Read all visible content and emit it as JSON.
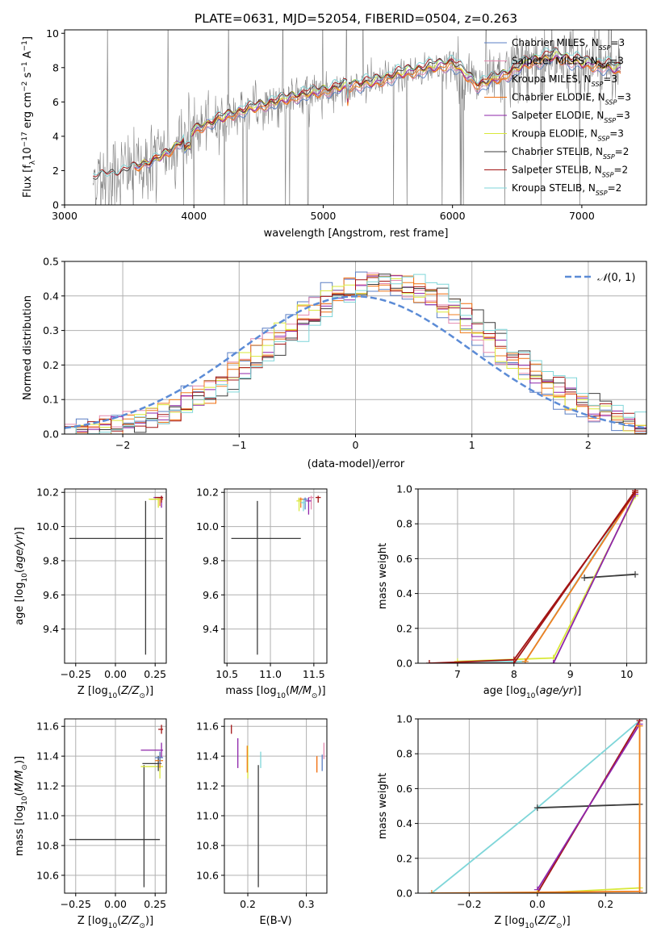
{
  "colors": {
    "Chabrier MILES": "#5b7fc4",
    "Salpeter MILES": "#e58bb0",
    "Kroupa MILES": "#f07f1f",
    "Chabrier ELODIE": "#f06c0c",
    "Salpeter ELODIE": "#8e24aa",
    "Kroupa ELODIE": "#d9e83a",
    "Chabrier STELIB": "#3c3c3c",
    "Salpeter STELIB": "#a31515",
    "Kroupa STELIB": "#7fd6d9",
    "data": "#808080",
    "normal": "#5b8bd6",
    "grid": "#b0b0b0"
  },
  "chart_data": [
    {
      "id": "spectrum",
      "type": "line",
      "title": "PLATE=0631, MJD=52054, FIBERID=0504, z=0.263",
      "xlabel": "wavelength [Angstrom, rest frame]",
      "ylabel_main": "Flux [f",
      "ylabel_rest": "10",
      "ylabel_unit": " erg cm",
      "ylabel_unit2": " s",
      "ylabel_unit3": " A",
      "ylabel_end": "]",
      "xlim": [
        3000,
        7500
      ],
      "ylim": [
        0,
        10.2
      ],
      "xticks": [
        3000,
        4000,
        5000,
        6000,
        7000
      ],
      "yticks": [
        0,
        2,
        4,
        6,
        8,
        10
      ],
      "grid": false,
      "legend_position": "top-right",
      "legend": [
        {
          "name": "Chabrier MILES, N",
          "sub": "SSP",
          "tail": "=3"
        },
        {
          "name": "Salpeter MILES, N",
          "sub": "SSP",
          "tail": "=3"
        },
        {
          "name": "Kroupa MILES, N",
          "sub": "SSP",
          "tail": "=3"
        },
        {
          "name": "Chabrier ELODIE, N",
          "sub": "SSP",
          "tail": "=3"
        },
        {
          "name": "Salpeter ELODIE, N",
          "sub": "SSP",
          "tail": "=3"
        },
        {
          "name": "Kroupa ELODIE, N",
          "sub": "SSP",
          "tail": "=3"
        },
        {
          "name": "Chabrier STELIB, N",
          "sub": "SSP",
          "tail": "=2"
        },
        {
          "name": "Salpeter STELIB, N",
          "sub": "SSP",
          "tail": "=2"
        },
        {
          "name": "Kroupa STELIB, N",
          "sub": "SSP",
          "tail": "=2"
        }
      ],
      "model_continuum": {
        "x": [
          3220,
          3400,
          3600,
          3800,
          4000,
          4200,
          4400,
          4600,
          4800,
          5000,
          5200,
          5400,
          5600,
          5800,
          6000,
          6200,
          6400,
          6600,
          6800,
          7000,
          7200,
          7300
        ],
        "y": [
          1.6,
          1.9,
          2.3,
          3.0,
          4.3,
          5.0,
          5.5,
          5.9,
          6.3,
          6.6,
          6.9,
          7.1,
          7.6,
          7.9,
          8.2,
          6.9,
          7.5,
          8.3,
          8.6,
          8.2,
          8.0,
          7.8
        ]
      }
    },
    {
      "id": "residuals",
      "type": "histogram",
      "xlabel": "(data-model)/error",
      "ylabel": "Normed distribution",
      "xlim": [
        -2.5,
        2.5
      ],
      "ylim": [
        0,
        0.5
      ],
      "xticks": [
        -2,
        -1,
        0,
        1,
        2
      ],
      "yticks": [
        0.0,
        0.1,
        0.2,
        0.3,
        0.4,
        0.5
      ],
      "grid": true,
      "legend": "N(0,1)",
      "normal_curve": {
        "mean": 0,
        "sigma": 1
      }
    },
    {
      "id": "age_vs_Z",
      "type": "errorbar",
      "xlabel": "Z [log",
      "xlabel_sub": "10",
      "xlabel_tail": "(Z/Z",
      "ylabel": "age  [log",
      "ylabel_tail": "(age/yr)]",
      "xlim": [
        -0.32,
        0.32
      ],
      "ylim": [
        9.2,
        10.22
      ],
      "xticks": [
        -0.25,
        0.0,
        0.25
      ],
      "yticks": [
        9.4,
        9.6,
        9.8,
        10.0,
        10.2
      ],
      "points": [
        {
          "model": "Chabrier STELIB",
          "x": 0.19,
          "xerr": [
            0.48,
            0.11
          ],
          "y": 9.93,
          "yerr": [
            0.68,
            0.22
          ]
        },
        {
          "model": "Kroupa MILES",
          "x": 0.28,
          "xerr": [
            0.06,
            0.02
          ],
          "y": 10.16,
          "yerr": [
            0.04,
            0.01
          ]
        },
        {
          "model": "Salpeter ELODIE",
          "x": 0.29,
          "xerr": [
            0.05,
            0.01
          ],
          "y": 10.17,
          "yerr": [
            0.06,
            0.01
          ]
        },
        {
          "model": "Kroupa ELODIE",
          "x": 0.27,
          "xerr": [
            0.06,
            0.02
          ],
          "y": 10.16,
          "yerr": [
            0.05,
            0.01
          ]
        },
        {
          "model": "Salpeter STELIB",
          "x": 0.29,
          "xerr": [
            0.04,
            0.01
          ],
          "y": 10.17,
          "yerr": [
            0.03,
            0.01
          ]
        }
      ]
    },
    {
      "id": "age_vs_mass",
      "type": "errorbar",
      "xlabel": "mass [log",
      "ylabel": "",
      "xlim": [
        10.47,
        11.65
      ],
      "ylim": [
        9.2,
        10.22
      ],
      "xticks": [
        10.5,
        11.0,
        11.5
      ],
      "yticks": [
        9.4,
        9.6,
        9.8,
        10.0,
        10.2
      ],
      "points": [
        {
          "model": "Chabrier STELIB",
          "x": 10.85,
          "xerr": [
            0.3,
            0.5
          ],
          "y": 9.93,
          "yerr": [
            0.68,
            0.22
          ]
        },
        {
          "model": "Chabrier MILES",
          "x": 11.4,
          "xerr": [
            0.03,
            0.03
          ],
          "y": 10.16,
          "yerr": [
            0.06,
            0.01
          ]
        },
        {
          "model": "Salpeter MILES",
          "x": 11.47,
          "xerr": [
            0.03,
            0.03
          ],
          "y": 10.17,
          "yerr": [
            0.07,
            0.01
          ]
        },
        {
          "model": "Kroupa MILES",
          "x": 11.35,
          "xerr": [
            0.03,
            0.03
          ],
          "y": 10.16,
          "yerr": [
            0.05,
            0.01
          ]
        },
        {
          "model": "Salpeter ELODIE",
          "x": 11.44,
          "xerr": [
            0.03,
            0.03
          ],
          "y": 10.15,
          "yerr": [
            0.08,
            0.02
          ]
        },
        {
          "model": "Kroupa ELODIE",
          "x": 11.33,
          "xerr": [
            0.03,
            0.03
          ],
          "y": 10.15,
          "yerr": [
            0.06,
            0.02
          ]
        },
        {
          "model": "Salpeter STELIB",
          "x": 11.55,
          "xerr": [
            0.03,
            0.03
          ],
          "y": 10.17,
          "yerr": [
            0.03,
            0.01
          ]
        },
        {
          "model": "Kroupa STELIB",
          "x": 11.38,
          "xerr": [
            0.03,
            0.03
          ],
          "y": 10.14,
          "yerr": [
            0.05,
            0.02
          ]
        }
      ]
    },
    {
      "id": "weight_vs_age",
      "type": "line",
      "xlabel": "age  [log",
      "ylabel": "mass weight",
      "xlim": [
        6.3,
        10.35
      ],
      "ylim": [
        0,
        1
      ],
      "xticks": [
        7,
        8,
        9,
        10
      ],
      "yticks": [
        0.0,
        0.2,
        0.4,
        0.6,
        0.8,
        1.0
      ],
      "series": [
        {
          "model": "Chabrier STELIB",
          "x": [
            9.25,
            10.15
          ],
          "y": [
            0.49,
            0.51
          ]
        },
        {
          "model": "Kroupa STELIB",
          "x": [
            6.5,
            8.2,
            10.15
          ],
          "y": [
            0.0,
            0.01,
            0.99
          ]
        },
        {
          "model": "Kroupa ELODIE",
          "x": [
            7.0,
            8.7,
            10.15
          ],
          "y": [
            0.01,
            0.03,
            0.96
          ]
        },
        {
          "model": "Salpeter ELODIE",
          "x": [
            8.7,
            10.15
          ],
          "y": [
            0.0,
            0.97
          ]
        },
        {
          "model": "Kroupa MILES",
          "x": [
            8.2,
            10.15
          ],
          "y": [
            0.01,
            0.98
          ]
        },
        {
          "model": "Salpeter STELIB",
          "x": [
            6.5,
            8.0,
            10.15
          ],
          "y": [
            0.0,
            0.0,
            0.99
          ]
        },
        {
          "model": "Salpeter STELIB",
          "x": [
            6.5,
            8.0,
            10.15
          ],
          "y": [
            0.0,
            0.02,
            0.98
          ]
        }
      ]
    },
    {
      "id": "mass_vs_Z",
      "type": "errorbar",
      "xlabel": "Z [log",
      "ylabel": "mass [log",
      "xlim": [
        -0.32,
        0.32
      ],
      "ylim": [
        10.48,
        11.65
      ],
      "xticks": [
        -0.25,
        0.0,
        0.25
      ],
      "yticks": [
        10.6,
        10.8,
        11.0,
        11.2,
        11.4,
        11.6
      ],
      "points": [
        {
          "model": "Chabrier STELIB",
          "x": 0.18,
          "xerr": [
            0.47,
            0.1
          ],
          "y": 10.84,
          "yerr": [
            0.32,
            0.5
          ]
        },
        {
          "model": "Salpeter ELODIE",
          "x": 0.29,
          "xerr": [
            0.13,
            0.01
          ],
          "y": 11.44,
          "yerr": [
            0.05,
            0.05
          ]
        },
        {
          "model": "Kroupa ELODIE",
          "x": 0.28,
          "xerr": [
            0.12,
            0.02
          ],
          "y": 11.33,
          "yerr": [
            0.08,
            0.05
          ]
        },
        {
          "model": "Chabrier STELIB",
          "x": 0.27,
          "xerr": [
            0.1,
            0.02
          ],
          "y": 11.35,
          "yerr": [
            0.05,
            0.05
          ]
        },
        {
          "model": "Salpeter STELIB",
          "x": 0.29,
          "xerr": [
            0.02,
            0.01
          ],
          "y": 11.58,
          "yerr": [
            0.03,
            0.03
          ]
        },
        {
          "model": "Kroupa MILES",
          "x": 0.28,
          "xerr": [
            0.03,
            0.02
          ],
          "y": 11.37,
          "yerr": [
            0.05,
            0.05
          ]
        },
        {
          "model": "Chabrier MILES",
          "x": 0.28,
          "xerr": [
            0.03,
            0.02
          ],
          "y": 11.39,
          "yerr": [
            0.04,
            0.04
          ]
        }
      ]
    },
    {
      "id": "mass_vs_ebv",
      "type": "errorbar",
      "xlabel": "E(B-V)",
      "ylabel": "",
      "xlim": [
        0.16,
        0.335
      ],
      "ylim": [
        10.48,
        11.65
      ],
      "xticks": [
        0.2,
        0.3
      ],
      "yticks": [
        10.6,
        10.8,
        11.0,
        11.2,
        11.4,
        11.6
      ],
      "points": [
        {
          "model": "Chabrier STELIB",
          "x": 0.218,
          "y": 10.84,
          "yerr": [
            0.32,
            0.5
          ]
        },
        {
          "model": "Salpeter STELIB",
          "x": 0.172,
          "y": 11.58,
          "yerr": [
            0.03,
            0.03
          ]
        },
        {
          "model": "Salpeter ELODIE",
          "x": 0.183,
          "y": 11.44,
          "yerr": [
            0.12,
            0.08
          ]
        },
        {
          "model": "Kroupa ELODIE",
          "x": 0.2,
          "y": 11.37,
          "yerr": [
            0.12,
            0.1
          ]
        },
        {
          "model": "Kroupa MILES",
          "x": 0.199,
          "y": 11.39,
          "yerr": [
            0.1,
            0.08
          ]
        },
        {
          "model": "Kroupa STELIB",
          "x": 0.222,
          "y": 11.38,
          "yerr": [
            0.06,
            0.05
          ]
        },
        {
          "model": "Chabrier ELODIE",
          "x": 0.318,
          "y": 11.35,
          "yerr": [
            0.06,
            0.05
          ]
        },
        {
          "model": "Chabrier MILES",
          "x": 0.327,
          "y": 11.36,
          "yerr": [
            0.06,
            0.05
          ]
        },
        {
          "model": "Salpeter MILES",
          "x": 0.33,
          "y": 11.44,
          "yerr": [
            0.06,
            0.05
          ]
        }
      ]
    },
    {
      "id": "weight_vs_Z",
      "type": "line",
      "xlabel": "Z [log",
      "ylabel": "mass weight",
      "xlim": [
        -0.35,
        0.32
      ],
      "ylim": [
        0,
        1
      ],
      "xticks": [
        -0.2,
        0.0,
        0.2
      ],
      "yticks": [
        0.0,
        0.2,
        0.4,
        0.6,
        0.8,
        1.0
      ],
      "series": [
        {
          "model": "Kroupa STELIB",
          "x": [
            -0.31,
            0.0,
            0.3
          ],
          "y": [
            0.0,
            0.49,
            0.99
          ]
        },
        {
          "model": "Chabrier STELIB",
          "x": [
            0.0,
            0.3
          ],
          "y": [
            0.49,
            0.51
          ]
        },
        {
          "model": "Salpeter STELIB",
          "x": [
            0.0,
            0.3
          ],
          "y": [
            0.0,
            0.99
          ]
        },
        {
          "model": "Salpeter ELODIE",
          "x": [
            0.0,
            0.3
          ],
          "y": [
            0.02,
            0.97
          ]
        },
        {
          "model": "Kroupa ELODIE",
          "x": [
            0.0,
            0.3,
            0.3
          ],
          "y": [
            0.0,
            0.03,
            0.96
          ]
        },
        {
          "model": "Kroupa MILES",
          "x": [
            -0.31,
            0.3,
            0.3
          ],
          "y": [
            0.0,
            0.01,
            0.96
          ]
        }
      ]
    }
  ]
}
